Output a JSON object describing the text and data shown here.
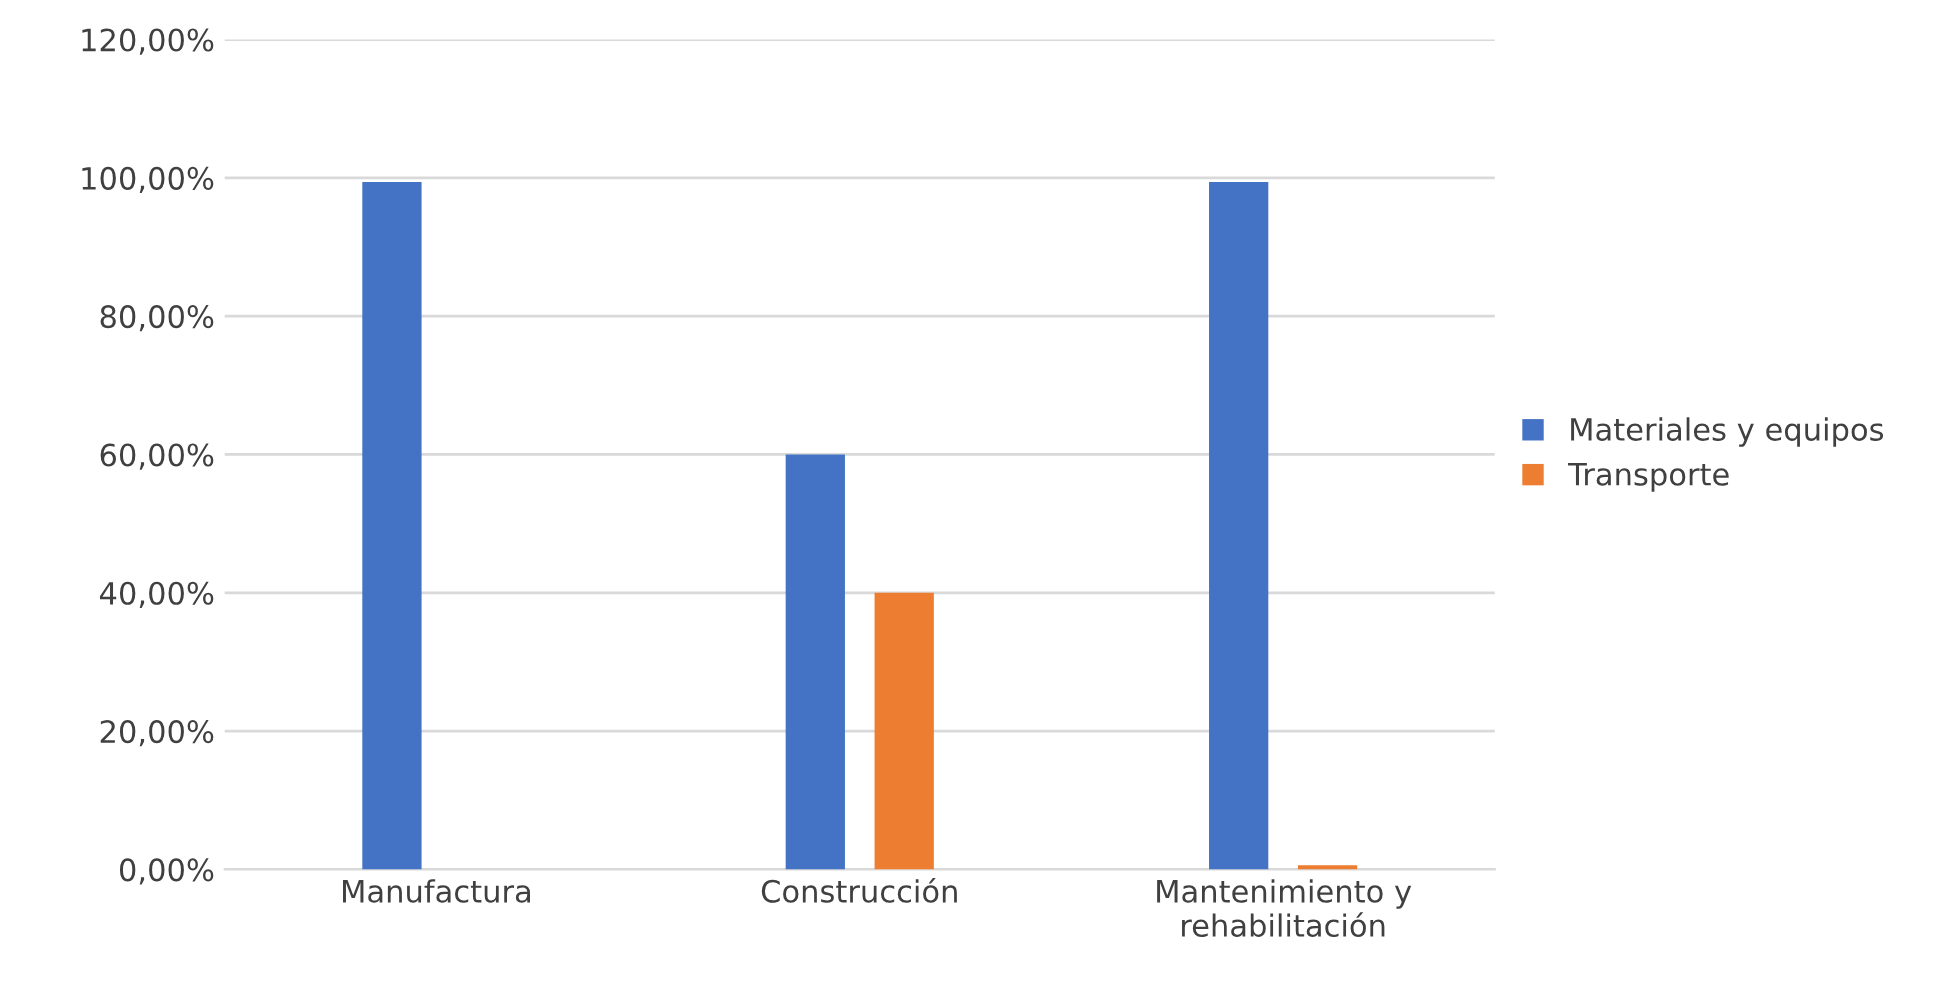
{
  "chart_data": {
    "type": "bar",
    "categories": [
      "Manufactura",
      "Construcción",
      "Mantenimiento y\nrehabilitación"
    ],
    "series": [
      {
        "name": "Materiales y equipos",
        "color": "#4472c4",
        "values": [
          99.4,
          60,
          99.4
        ]
      },
      {
        "name": "Transporte",
        "color": "#ed7d31",
        "values": [
          0,
          40,
          0.6
        ]
      }
    ],
    "ylim": [
      0,
      120
    ],
    "yticks": [
      {
        "value": 0,
        "label": "0,00%"
      },
      {
        "value": 20,
        "label": "20,00%"
      },
      {
        "value": 40,
        "label": "40,00%"
      },
      {
        "value": 60,
        "label": "60,00%"
      },
      {
        "value": 80,
        "label": "80,00%"
      },
      {
        "value": 100,
        "label": "100,00%"
      },
      {
        "value": 120,
        "label": "120,00%"
      }
    ],
    "grid": "y",
    "legend": "right"
  }
}
